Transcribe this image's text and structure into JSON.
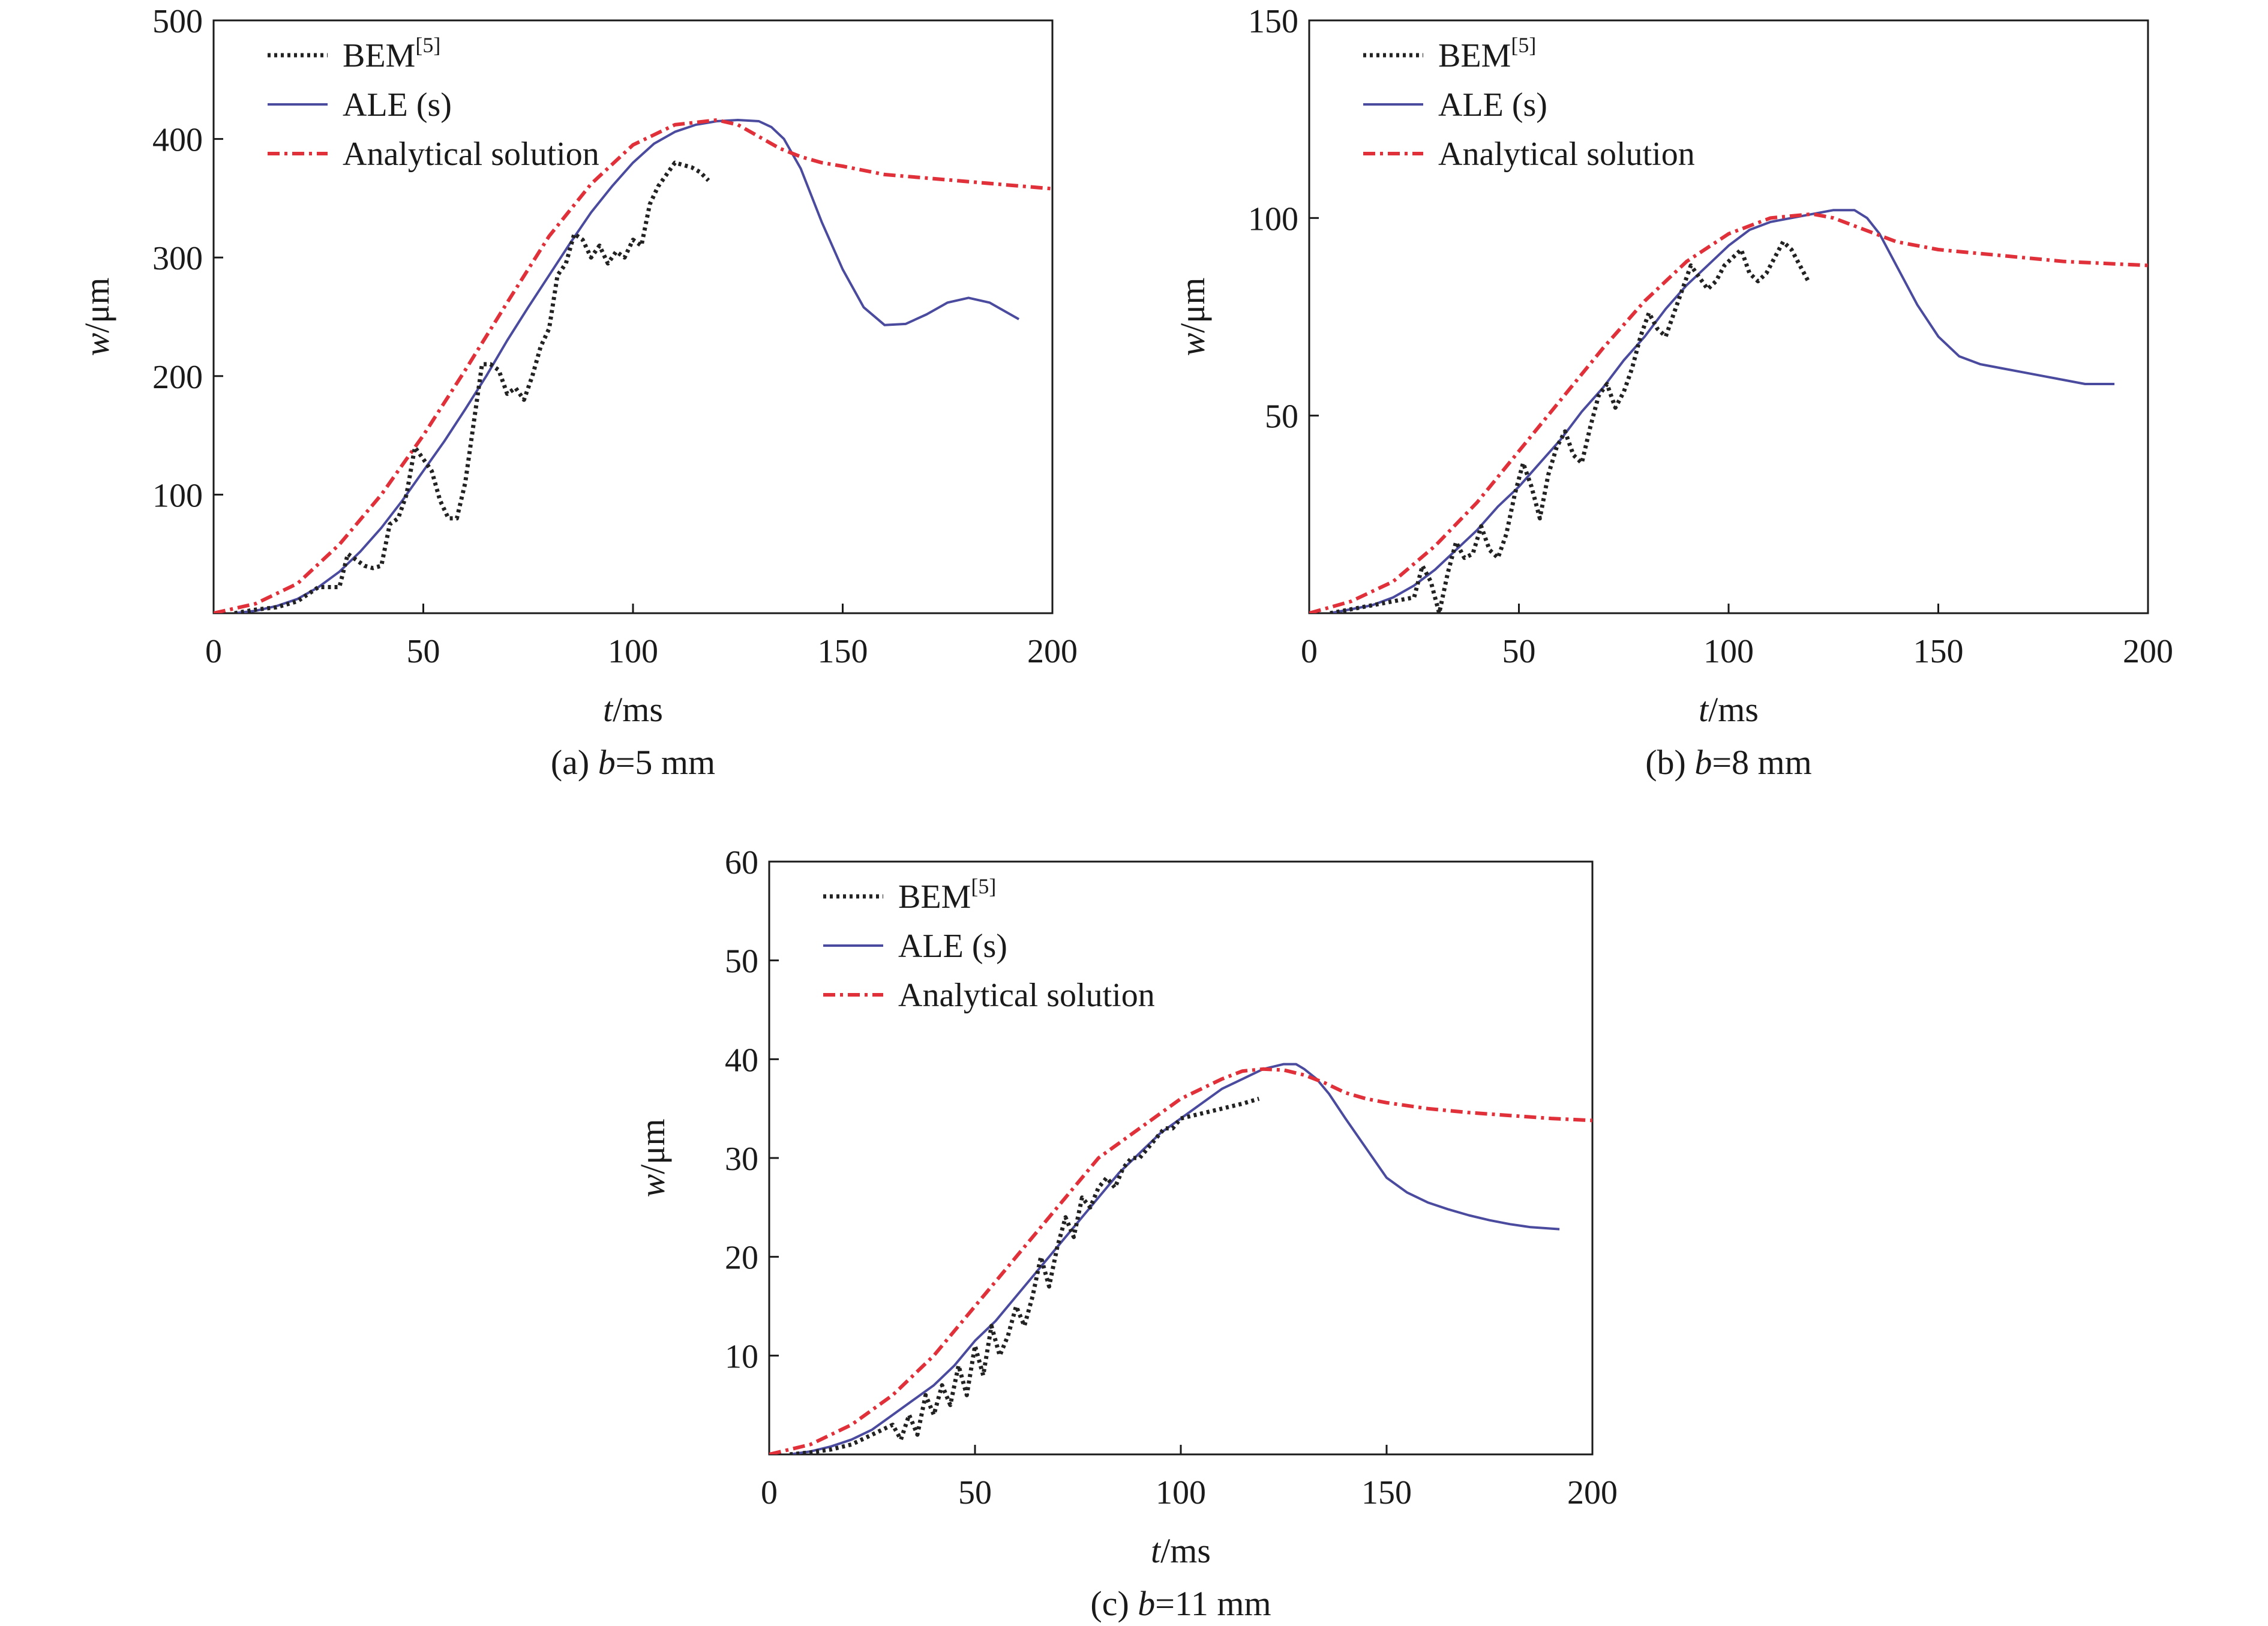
{
  "chart_data": [
    {
      "type": "line",
      "caption": {
        "prefix": "(a) ",
        "var": "b",
        "suffix": "=5 mm"
      },
      "xlabel": {
        "var": "t",
        "unit": "/ms"
      },
      "ylabel": {
        "var": "w",
        "unit": "/μm"
      },
      "xlim": [
        0,
        200
      ],
      "ylim": [
        0,
        500
      ],
      "xticks": [
        0,
        50,
        100,
        150,
        200
      ],
      "yticks": [
        100,
        200,
        300,
        400,
        500
      ],
      "legend": [
        {
          "name": "BEM",
          "sup": "[5]",
          "color": "#222222",
          "style": "dotted"
        },
        {
          "name": "ALE (s)",
          "color": "#4a4a9e",
          "style": "solid"
        },
        {
          "name": "Analytical solution",
          "color": "#e0303a",
          "style": "dashdot"
        }
      ],
      "series": [
        {
          "name": "BEM",
          "x": [
            5,
            10,
            15,
            20,
            25,
            28,
            30,
            32,
            34,
            36,
            38,
            40,
            42,
            44,
            46,
            48,
            50,
            52,
            54,
            56,
            58,
            60,
            62,
            64,
            66,
            68,
            70,
            72,
            74,
            76,
            78,
            80,
            82,
            84,
            86,
            88,
            90,
            92,
            94,
            96,
            98,
            100,
            102,
            104,
            106,
            108,
            110,
            112,
            114,
            116,
            118
          ],
          "y": [
            0,
            3,
            5,
            10,
            22,
            22,
            22,
            50,
            45,
            40,
            38,
            40,
            75,
            80,
            100,
            140,
            130,
            120,
            95,
            80,
            80,
            110,
            160,
            210,
            210,
            205,
            185,
            190,
            180,
            200,
            225,
            240,
            285,
            295,
            320,
            315,
            300,
            310,
            295,
            305,
            300,
            315,
            310,
            345,
            360,
            370,
            380,
            378,
            376,
            372,
            365
          ]
        },
        {
          "name": "ALE (s)",
          "x": [
            5,
            10,
            15,
            20,
            25,
            30,
            35,
            40,
            45,
            50,
            55,
            60,
            65,
            70,
            75,
            80,
            85,
            90,
            95,
            100,
            105,
            110,
            115,
            120,
            125,
            130,
            133,
            136,
            140,
            145,
            150,
            155,
            160,
            165,
            170,
            175,
            180,
            185,
            192
          ],
          "y": [
            0,
            2,
            6,
            12,
            22,
            35,
            52,
            72,
            95,
            120,
            145,
            172,
            200,
            230,
            258,
            285,
            312,
            338,
            360,
            380,
            396,
            406,
            412,
            415,
            416,
            415,
            410,
            400,
            375,
            330,
            290,
            258,
            243,
            244,
            252,
            262,
            266,
            262,
            248
          ]
        },
        {
          "name": "Analytical solution",
          "x": [
            0,
            10,
            20,
            30,
            40,
            50,
            60,
            70,
            80,
            90,
            100,
            110,
            120,
            125,
            130,
            135,
            140,
            145,
            150,
            160,
            170,
            180,
            190,
            200
          ],
          "y": [
            0,
            8,
            25,
            58,
            100,
            150,
            205,
            262,
            318,
            362,
            395,
            412,
            416,
            412,
            402,
            392,
            385,
            380,
            377,
            370,
            367,
            364,
            361,
            358
          ]
        }
      ]
    },
    {
      "type": "line",
      "caption": {
        "prefix": "(b) ",
        "var": "b",
        "suffix": "=8 mm"
      },
      "xlabel": {
        "var": "t",
        "unit": "/ms"
      },
      "ylabel": {
        "var": "w",
        "unit": "/μm"
      },
      "xlim": [
        0,
        200
      ],
      "ylim": [
        0,
        150
      ],
      "xticks": [
        0,
        50,
        100,
        150,
        200
      ],
      "yticks": [
        50,
        100,
        150
      ],
      "legend": [
        {
          "name": "BEM",
          "sup": "[5]",
          "color": "#222222",
          "style": "dotted"
        },
        {
          "name": "ALE (s)",
          "color": "#4a4a9e",
          "style": "solid"
        },
        {
          "name": "Analytical solution",
          "color": "#e0303a",
          "style": "dashdot"
        }
      ],
      "series": [
        {
          "name": "BEM",
          "x": [
            5,
            10,
            15,
            20,
            25,
            27,
            29,
            31,
            33,
            35,
            37,
            39,
            41,
            43,
            45,
            47,
            49,
            51,
            53,
            55,
            57,
            59,
            61,
            63,
            65,
            67,
            69,
            71,
            73,
            75,
            77,
            79,
            81,
            83,
            85,
            87,
            89,
            91,
            93,
            95,
            97,
            99,
            101,
            103,
            105,
            107,
            109,
            111,
            113,
            115,
            117,
            119
          ],
          "y": [
            0,
            1,
            2,
            3,
            4,
            12,
            8,
            0,
            10,
            18,
            14,
            15,
            22,
            16,
            14,
            20,
            30,
            38,
            32,
            24,
            35,
            42,
            46,
            40,
            38,
            47,
            55,
            58,
            52,
            56,
            62,
            70,
            76,
            72,
            70,
            76,
            82,
            88,
            85,
            82,
            84,
            88,
            90,
            92,
            86,
            84,
            86,
            90,
            94,
            92,
            88,
            84
          ]
        },
        {
          "name": "ALE (s)",
          "x": [
            5,
            10,
            15,
            20,
            25,
            30,
            35,
            40,
            45,
            50,
            55,
            60,
            65,
            70,
            75,
            80,
            85,
            90,
            95,
            100,
            105,
            110,
            115,
            120,
            125,
            130,
            133,
            136,
            140,
            145,
            150,
            155,
            160,
            165,
            170,
            175,
            180,
            185,
            192
          ],
          "y": [
            0,
            1,
            2,
            4,
            7,
            11,
            16,
            21,
            27,
            32,
            38,
            44,
            51,
            57,
            64,
            70,
            77,
            83,
            88,
            93,
            97,
            99,
            100,
            101,
            102,
            102,
            100,
            96,
            88,
            78,
            70,
            65,
            63,
            62,
            61,
            60,
            59,
            58,
            58
          ]
        },
        {
          "name": "Analytical solution",
          "x": [
            0,
            10,
            20,
            30,
            40,
            50,
            60,
            70,
            80,
            90,
            100,
            110,
            120,
            125,
            130,
            135,
            140,
            145,
            150,
            160,
            170,
            180,
            190,
            200
          ],
          "y": [
            0,
            3,
            8,
            17,
            28,
            41,
            54,
            67,
            79,
            89,
            96,
            100,
            101,
            100,
            98,
            96,
            94,
            93,
            92,
            91,
            90,
            89,
            88.5,
            88
          ]
        }
      ]
    },
    {
      "type": "line",
      "caption": {
        "prefix": "(c) ",
        "var": "b",
        "suffix": "=11 mm"
      },
      "xlabel": {
        "var": "t",
        "unit": "/ms"
      },
      "ylabel": {
        "var": "w",
        "unit": "/μm"
      },
      "xlim": [
        0,
        200
      ],
      "ylim": [
        0,
        60
      ],
      "xticks": [
        0,
        50,
        100,
        150,
        200
      ],
      "yticks": [
        10,
        20,
        30,
        40,
        50,
        60
      ],
      "legend": [
        {
          "name": "BEM",
          "sup": "[5]",
          "color": "#222222",
          "style": "dotted"
        },
        {
          "name": "ALE (s)",
          "color": "#4a4a9e",
          "style": "solid"
        },
        {
          "name": "Analytical solution",
          "color": "#e0303a",
          "style": "dashdot"
        }
      ],
      "series": [
        {
          "name": "BEM",
          "x": [
            5,
            10,
            15,
            20,
            25,
            30,
            32,
            34,
            36,
            38,
            40,
            42,
            44,
            46,
            48,
            50,
            52,
            54,
            56,
            58,
            60,
            62,
            64,
            66,
            68,
            70,
            72,
            74,
            76,
            78,
            80,
            82,
            84,
            86,
            88,
            90,
            92,
            94,
            96,
            98,
            100,
            105,
            110,
            115,
            119
          ],
          "y": [
            0,
            0.2,
            0.5,
            1,
            2,
            3,
            1.5,
            4,
            2,
            6,
            4,
            7,
            5,
            9,
            6,
            11,
            8,
            13,
            10,
            12,
            15,
            13,
            16,
            20,
            17,
            21,
            24,
            22,
            26,
            25,
            27,
            28,
            27,
            29,
            30,
            30,
            31,
            32,
            33,
            33,
            34,
            34.5,
            35,
            35.5,
            36
          ]
        },
        {
          "name": "ALE (s)",
          "x": [
            5,
            10,
            15,
            20,
            25,
            30,
            35,
            40,
            45,
            50,
            55,
            60,
            65,
            70,
            75,
            80,
            85,
            90,
            95,
            100,
            105,
            110,
            115,
            120,
            125,
            128,
            130,
            133,
            136,
            140,
            145,
            150,
            155,
            160,
            165,
            170,
            175,
            180,
            185,
            192
          ],
          "y": [
            0,
            0.3,
            0.8,
            1.5,
            2.5,
            4,
            5.5,
            7,
            9,
            11.5,
            13.5,
            16,
            18.5,
            21,
            23.5,
            26,
            28.5,
            30.5,
            32.5,
            34,
            35.5,
            37,
            38,
            39,
            39.5,
            39.5,
            39,
            38,
            36.5,
            34,
            31,
            28,
            26.5,
            25.5,
            24.8,
            24.2,
            23.7,
            23.3,
            23,
            22.8
          ]
        },
        {
          "name": "Analytical solution",
          "x": [
            0,
            10,
            20,
            30,
            40,
            50,
            60,
            70,
            80,
            90,
            100,
            110,
            115,
            120,
            125,
            130,
            135,
            140,
            145,
            150,
            160,
            170,
            180,
            190,
            200
          ],
          "y": [
            0,
            1,
            3,
            6,
            10,
            15,
            20,
            25,
            30,
            33,
            36,
            38,
            38.8,
            39,
            38.9,
            38.4,
            37.6,
            36.6,
            36,
            35.6,
            35,
            34.6,
            34.3,
            34,
            33.8
          ]
        }
      ]
    }
  ]
}
